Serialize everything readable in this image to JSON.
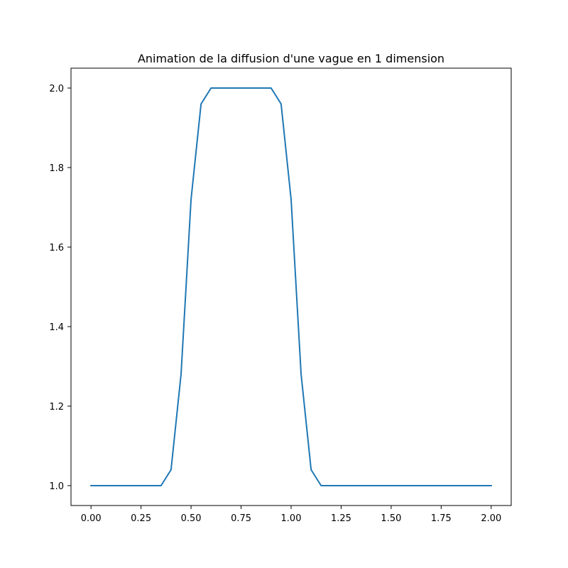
{
  "chart_data": {
    "type": "line",
    "title": "Animation de la diffusion d'une vague en 1 dimension",
    "xlabel": "",
    "ylabel": "",
    "xlim": [
      -0.1,
      2.1
    ],
    "ylim": [
      0.95,
      2.05
    ],
    "xticks": [
      0.0,
      0.25,
      0.5,
      0.75,
      1.0,
      1.25,
      1.5,
      1.75,
      2.0
    ],
    "xtick_labels": [
      "0.00",
      "0.25",
      "0.50",
      "0.75",
      "1.00",
      "1.25",
      "1.50",
      "1.75",
      "2.00"
    ],
    "yticks": [
      1.0,
      1.2,
      1.4,
      1.6,
      1.8,
      2.0
    ],
    "ytick_labels": [
      "1.0",
      "1.2",
      "1.4",
      "1.6",
      "1.8",
      "2.0"
    ],
    "grid": false,
    "legend": "none",
    "series": [
      {
        "color": "#1f77b4",
        "x": [
          0.0,
          0.05,
          0.1,
          0.15,
          0.2,
          0.25,
          0.3,
          0.35,
          0.4,
          0.45,
          0.5,
          0.55,
          0.6,
          0.65,
          0.7,
          0.75,
          0.8,
          0.85,
          0.9,
          0.95,
          1.0,
          1.05,
          1.1,
          1.15,
          1.2,
          1.25,
          1.3,
          1.35,
          1.4,
          1.45,
          1.5,
          1.55,
          1.6,
          1.65,
          1.7,
          1.75,
          1.8,
          1.85,
          1.9,
          1.95,
          2.0
        ],
        "y": [
          1.0,
          1.0,
          1.0,
          1.0,
          1.0,
          1.0,
          1.0,
          1.0,
          1.04,
          1.28,
          1.72,
          1.96,
          2.0,
          2.0,
          2.0,
          2.0,
          2.0,
          2.0,
          2.0,
          1.96,
          1.72,
          1.28,
          1.04,
          1.0,
          1.0,
          1.0,
          1.0,
          1.0,
          1.0,
          1.0,
          1.0,
          1.0,
          1.0,
          1.0,
          1.0,
          1.0,
          1.0,
          1.0,
          1.0,
          1.0,
          1.0
        ]
      }
    ]
  }
}
